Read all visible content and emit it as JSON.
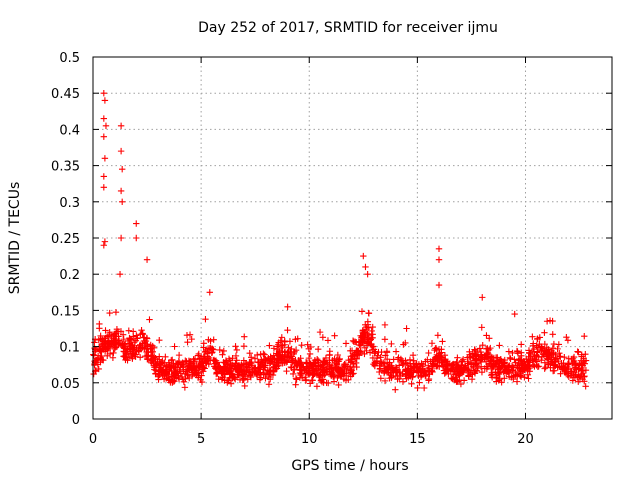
{
  "chart_data": {
    "type": "scatter",
    "title": "Day 252 of 2017, SRMTID for receiver ijmu",
    "xlabel": "GPS time / hours",
    "ylabel": "SRMTID / TECUs",
    "xlim": [
      0,
      24
    ],
    "ylim": [
      0,
      0.5
    ],
    "xticks": [
      0,
      5,
      10,
      15,
      20
    ],
    "yticks": [
      0,
      0.05,
      0.1,
      0.15,
      0.2,
      0.25,
      0.3,
      0.35,
      0.4,
      0.45,
      0.5
    ],
    "ytick_labels": [
      "0",
      "0.05",
      "0.1",
      "0.15",
      "0.2",
      "0.25",
      "0.3",
      "0.35",
      "0.4",
      "0.45",
      "0.5"
    ],
    "grid": true,
    "marker": "plus",
    "point_color": "#ff0000",
    "series": [
      {
        "name": "SRMTID",
        "note": "Dense cloud of roughly 2000 points (baseline ~0.03-0.12 TECU) across 0-22.8 h; selected prominent values listed",
        "x_range": [
          0,
          22.8
        ],
        "typical_y_range": [
          0.02,
          0.12
        ],
        "x": [
          0.5,
          0.55,
          0.5,
          0.6,
          0.5,
          0.55,
          0.5,
          0.5,
          1.3,
          1.3,
          1.35,
          1.3,
          1.35,
          0.55,
          0.5,
          1.3,
          1.25,
          2.0,
          2.0,
          2.5,
          12.5,
          12.6,
          12.7,
          16.0,
          16.0,
          16.0,
          18.0,
          5.4,
          9.0,
          10.5,
          13.5,
          14.5,
          19.5,
          21.0,
          22.7
        ],
        "y": [
          0.45,
          0.44,
          0.415,
          0.405,
          0.39,
          0.36,
          0.335,
          0.32,
          0.405,
          0.37,
          0.345,
          0.315,
          0.3,
          0.245,
          0.24,
          0.25,
          0.2,
          0.27,
          0.25,
          0.22,
          0.225,
          0.21,
          0.2,
          0.235,
          0.22,
          0.185,
          0.168,
          0.175,
          0.155,
          0.12,
          0.13,
          0.125,
          0.145,
          0.135,
          0.08
        ]
      }
    ]
  }
}
